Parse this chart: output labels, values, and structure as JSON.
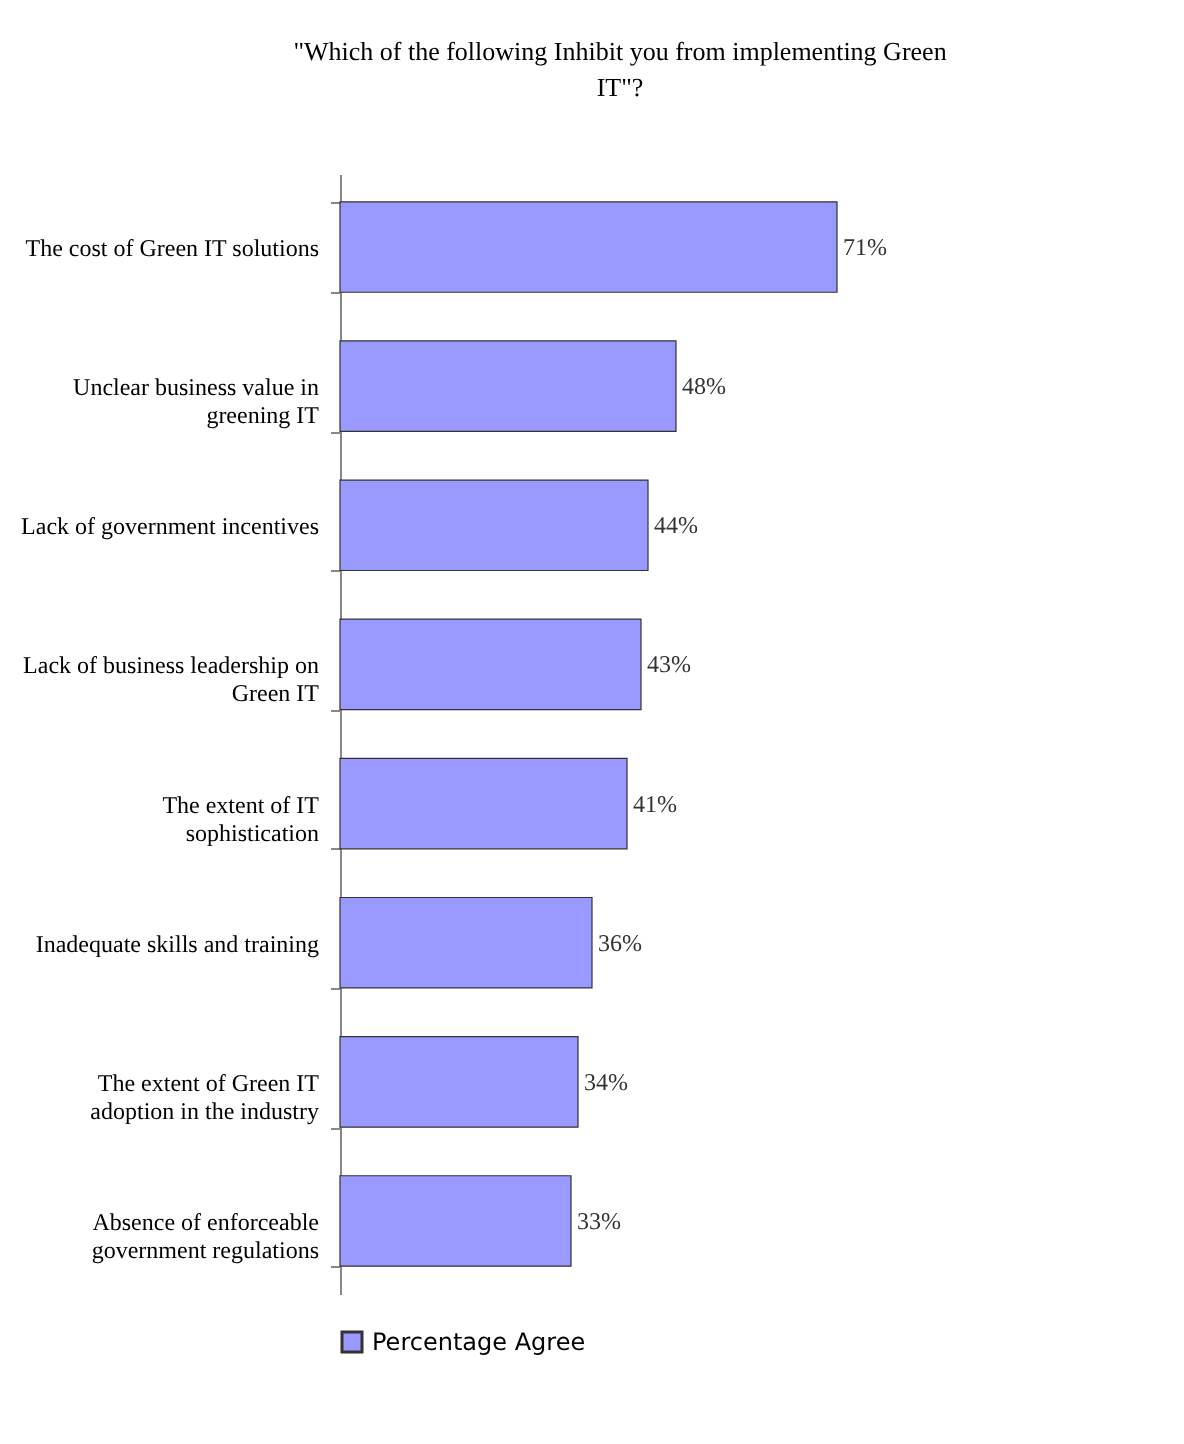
{
  "chart_data": {
    "type": "bar",
    "orientation": "horizontal",
    "title": "\"Which of the following Inhibit you from implementing Green IT\"?",
    "categories": [
      "The cost of Green IT solutions",
      "Unclear business value in greening IT",
      "Lack of government incentives",
      "Lack of business leadership on Green IT",
      "The extent of  IT sophistication",
      "Inadequate skills and training",
      "The extent of Green IT adoption in the industry",
      "Absence of enforceable government regulations"
    ],
    "series": [
      {
        "name": "Percentage Agree",
        "color": "#9999ff",
        "values": [
          71,
          48,
          44,
          43,
          41,
          36,
          34,
          33
        ],
        "value_labels": [
          "71%",
          "48%",
          "44%",
          "43%",
          "41%",
          "36%",
          "34%",
          "33%"
        ]
      }
    ],
    "legend": "bottom"
  }
}
